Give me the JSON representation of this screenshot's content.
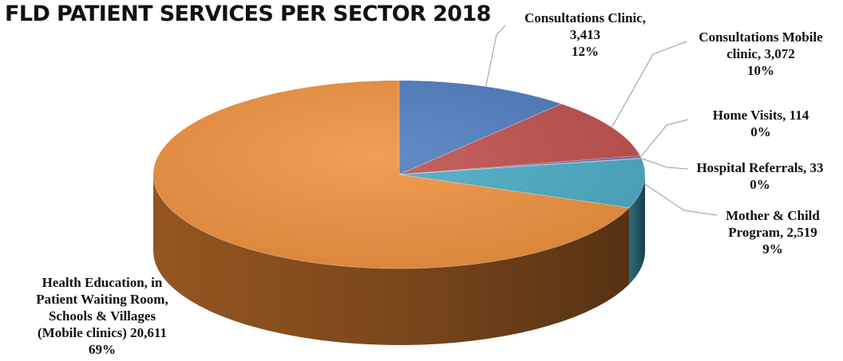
{
  "chart_data": {
    "type": "pie",
    "title": "FLD PATIENT SERVICES PER SECTOR 2018",
    "series": [
      {
        "values": [
          3413,
          3072,
          114,
          33,
          2519,
          20611
        ],
        "categories": [
          "Consultations Clinic",
          "Consultations Mobile clinic",
          "Home Visits",
          "Hospital Referrals",
          "Mother & Child Program",
          "Health Education, in Patient Waiting Room, Schools & Villages (Mobile clinics)"
        ]
      }
    ],
    "colors": [
      "#4f7dc0",
      "#c0504d",
      "#8064a2",
      "#6c8ebf",
      "#4bacc6",
      "#f0923f"
    ],
    "side_colors": [
      "#2d4c78",
      "#7a2e2c",
      "#4e3c66",
      "#3f5a7f",
      "#2c6f80",
      "#9c5a22"
    ],
    "legend": "none",
    "data_labels": [
      [
        "Consultations Clinic,",
        "3,413",
        "12%"
      ],
      [
        "Consultations Mobile",
        "clinic, 3,072",
        "10%"
      ],
      [
        "Home Visits, 114",
        "0%"
      ],
      [
        "Hospital Referrals, 33",
        "0%"
      ],
      [
        "Mother & Child",
        "Program, 2,519",
        "9%"
      ]
    ],
    "big_label": [
      "Health Education, in",
      "Patient Waiting Room,",
      "Schools & Villages",
      "(Mobile clinics) 20,611",
      "69%"
    ]
  }
}
